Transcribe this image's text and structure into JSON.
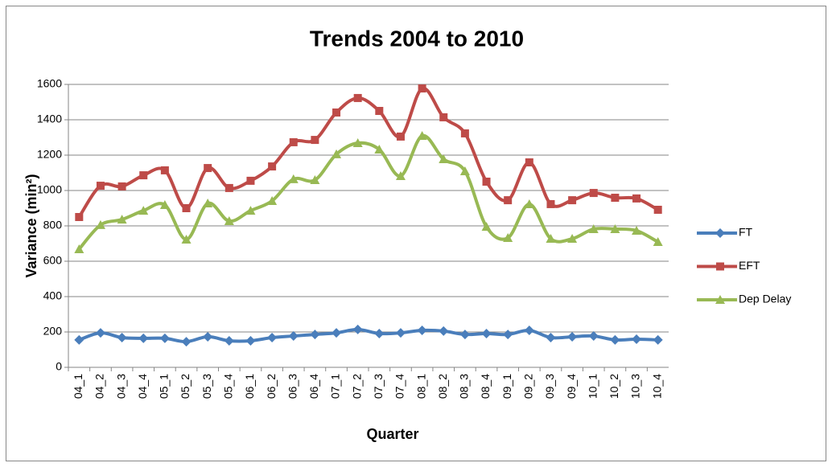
{
  "chart_data": {
    "type": "line",
    "title": "Trends 2004 to 2010",
    "x_label": "Quarter",
    "y_label": "Variance (min²)",
    "categories": [
      "04_1",
      "04_2",
      "04_3",
      "04_4",
      "05_1",
      "05_2",
      "05_3",
      "05_4",
      "06_1",
      "06_2",
      "06_3",
      "06_4",
      "07_1",
      "07_2",
      "07_3",
      "07_4",
      "08_1",
      "08_2",
      "08_3",
      "08_4",
      "09_1",
      "09_2",
      "09_3",
      "09_4",
      "10_1",
      "10_2",
      "10_3",
      "10_4"
    ],
    "series": [
      {
        "name": "FT",
        "color": "#4a7ebb",
        "marker": "diamond",
        "values": [
          155,
          195,
          168,
          164,
          164,
          145,
          173,
          150,
          150,
          168,
          177,
          186,
          195,
          214,
          191,
          195,
          209,
          205,
          186,
          191,
          186,
          209,
          168,
          173,
          177,
          155,
          159,
          155
        ]
      },
      {
        "name": "EFT",
        "color": "#be4b48",
        "marker": "square",
        "values": [
          850,
          1027,
          1023,
          1086,
          1114,
          900,
          1127,
          1014,
          1055,
          1136,
          1273,
          1286,
          1441,
          1523,
          1450,
          1305,
          1577,
          1414,
          1323,
          1050,
          945,
          1159,
          923,
          945,
          986,
          959,
          955,
          891
        ]
      },
      {
        "name": "Dep Delay",
        "color": "#98b954",
        "marker": "triangle",
        "values": [
          668,
          805,
          836,
          886,
          918,
          723,
          927,
          827,
          886,
          941,
          1064,
          1059,
          1205,
          1268,
          1232,
          1082,
          1309,
          1177,
          1109,
          795,
          732,
          923,
          727,
          727,
          782,
          782,
          773,
          709
        ]
      }
    ],
    "ylim": [
      0,
      1600
    ],
    "yticks": [
      0,
      200,
      400,
      600,
      800,
      1000,
      1200,
      1400,
      1600
    ],
    "grid": true,
    "smooth": true,
    "legend": "right"
  }
}
